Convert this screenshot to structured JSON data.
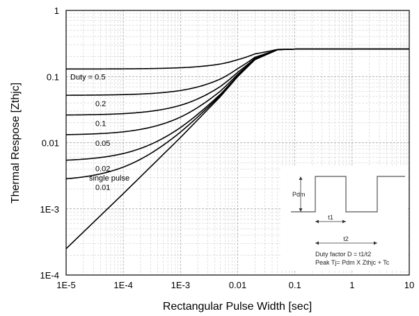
{
  "chart_data": {
    "type": "line",
    "xlabel": "Rectangular Pulse Width [sec]",
    "ylabel": "Thermal Respose [Zthjc]",
    "xscale": "log",
    "yscale": "log",
    "xlim": [
      1e-05,
      10
    ],
    "ylim": [
      0.0001,
      1
    ],
    "grid": true,
    "x_ticks": [
      "1E-5",
      "1E-4",
      "1E-3",
      "0.01",
      "0.1",
      "1",
      "10"
    ],
    "y_ticks": [
      "1E-4",
      "1E-3",
      "0.01",
      "0.1",
      "1"
    ],
    "steady_state_zthjc": 0.26,
    "single_pulse_points": {
      "x": [
        1e-05,
        0.0001,
        0.001,
        0.005,
        0.01,
        0.02,
        0.05,
        0.1,
        1,
        10
      ],
      "y": [
        0.00025,
        0.0017,
        0.012,
        0.05,
        0.1,
        0.18,
        0.255,
        0.26,
        0.26,
        0.26
      ]
    },
    "series": [
      {
        "name": "Duty = 0.5",
        "duty": 0.5
      },
      {
        "name": "0.2",
        "duty": 0.2
      },
      {
        "name": "0.1",
        "duty": 0.1
      },
      {
        "name": "0.05",
        "duty": 0.05
      },
      {
        "name": "0.02",
        "duty": 0.02
      },
      {
        "name": "0.01",
        "duty": 0.01
      },
      {
        "name": "single pulse",
        "duty": 0
      }
    ]
  },
  "inset": {
    "pdm_label": "Pdm",
    "t1_label": "t1",
    "t2_label": "t2",
    "note_duty": "Duty factor D = t1/t2",
    "note_peak": "Peak Tj= Pdm X Zthjc + Tc"
  }
}
